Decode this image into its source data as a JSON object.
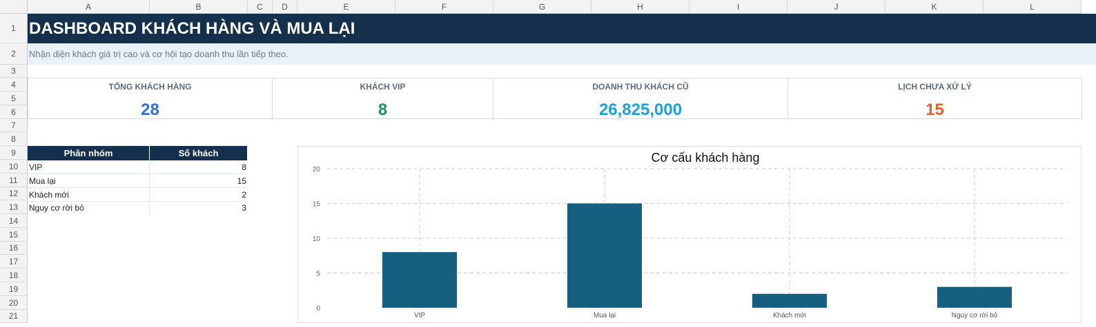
{
  "columns": [
    "A",
    "B",
    "C",
    "D",
    "E",
    "F",
    "G",
    "H",
    "I",
    "J",
    "K",
    "L"
  ],
  "rows": [
    "1",
    "2",
    "3",
    "4",
    "5",
    "6",
    "7",
    "8",
    "9",
    "10",
    "11",
    "12",
    "13",
    "14",
    "15",
    "16",
    "17",
    "18",
    "19",
    "20",
    "21"
  ],
  "sheet": {
    "title": "DASHBOARD KHÁCH HÀNG VÀ MUA LẠI",
    "subtitle": "Nhận diện khách giá trị cao và cơ hội tạo doanh thu lần tiếp theo."
  },
  "kpis": [
    {
      "label": "TỔNG KHÁCH HÀNG",
      "value": "28",
      "color": "#2f6fe4"
    },
    {
      "label": "KHÁCH VIP",
      "value": "8",
      "color": "#0f9d58"
    },
    {
      "label": "DOANH THU KHÁCH CŨ",
      "value": "26,825,000",
      "color": "#1aa3dd"
    },
    {
      "label": "LỊCH CHƯA XỬ LÝ",
      "value": "15",
      "color": "#e8622a"
    }
  ],
  "segment_table": {
    "headers": [
      "Phân nhóm",
      "Số khách"
    ],
    "rows": [
      {
        "name": "VIP",
        "count": "8"
      },
      {
        "name": "Mua lại",
        "count": "15"
      },
      {
        "name": "Khách mới",
        "count": "2"
      },
      {
        "name": "Nguy cơ rời bỏ",
        "count": "3"
      }
    ]
  },
  "chart_data": {
    "type": "bar",
    "title": "Cơ cấu khách hàng",
    "categories": [
      "VIP",
      "Mua lại",
      "Khách mới",
      "Nguy cơ rời bỏ"
    ],
    "values": [
      8,
      15,
      2,
      3
    ],
    "ylim": [
      0,
      20
    ],
    "yticks": [
      "0",
      "5",
      "10",
      "15",
      "20"
    ],
    "grid": true,
    "bar_color": "#16607f",
    "xlabel": "",
    "ylabel": ""
  },
  "colors": {
    "header_navy": "#15304c",
    "subtitle_bg": "#eaf1f9"
  }
}
